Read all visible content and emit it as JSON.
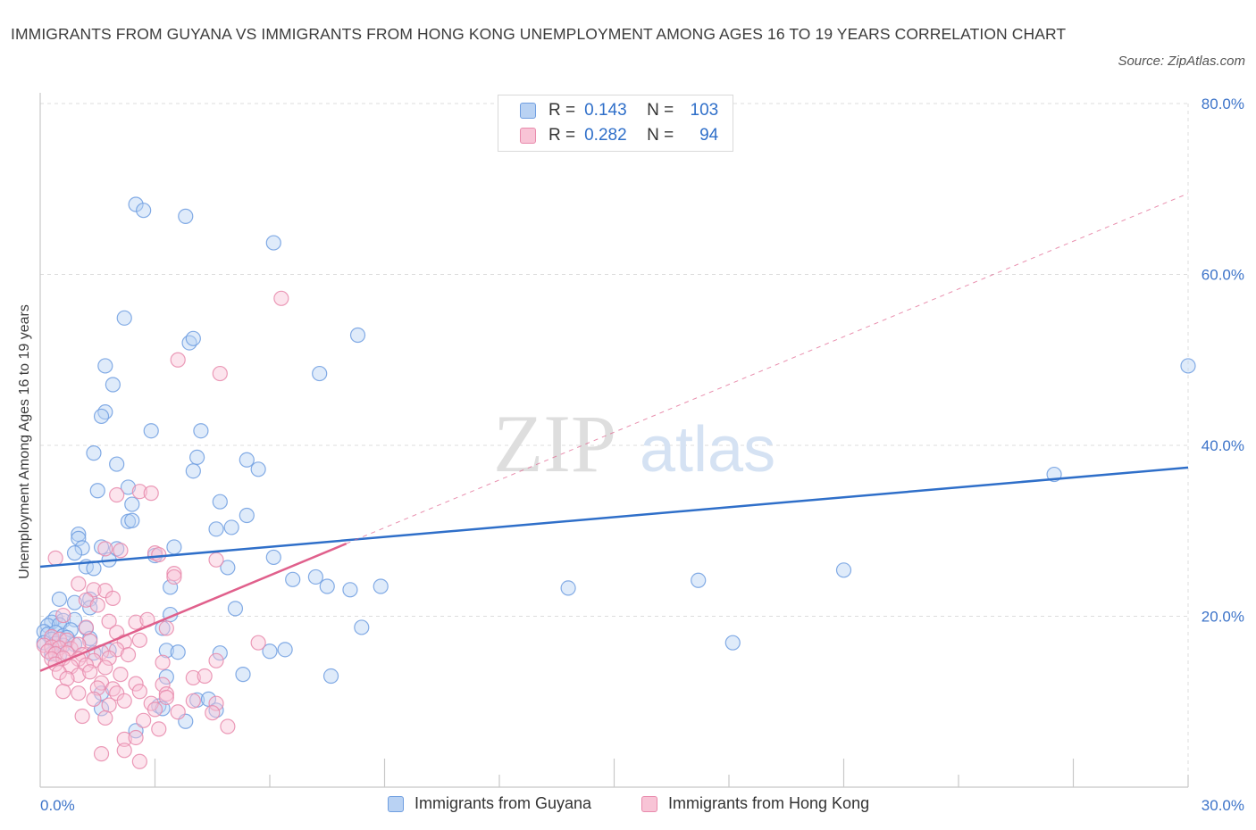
{
  "title": "IMMIGRANTS FROM GUYANA VS IMMIGRANTS FROM HONG KONG UNEMPLOYMENT AMONG AGES 16 TO 19 YEARS CORRELATION CHART",
  "source": "Source: ZipAtlas.com",
  "watermark": {
    "zip": "ZIP",
    "atlas": "atlas"
  },
  "legend": {
    "series": [
      {
        "r_label": "R =",
        "r_value": "0.143",
        "n_label": "N =",
        "n_value": "103"
      },
      {
        "r_label": "R =",
        "r_value": "0.282",
        "n_label": "N =",
        "n_value": "94"
      }
    ]
  },
  "bottom_legend": [
    "Immigrants from Guyana",
    "Immigrants from Hong Kong"
  ],
  "colors": {
    "blue": "#6f9ee0",
    "blue_fill": "#b9d2f3",
    "blue_line": "#2f6fc9",
    "pink": "#e88aac",
    "pink_fill": "#f8c4d6",
    "pink_line": "#e0608c",
    "axis_text": "#3d74c9"
  },
  "chart_data": {
    "type": "scatter",
    "title": "IMMIGRANTS FROM GUYANA VS IMMIGRANTS FROM HONG KONG UNEMPLOYMENT AMONG AGES 16 TO 19 YEARS CORRELATION CHART",
    "xlabel": "",
    "ylabel": "Unemployment Among Ages 16 to 19 years",
    "xlim": [
      0,
      30
    ],
    "ylim": [
      0,
      80
    ],
    "x_tick_labels": [
      "0.0%",
      "30.0%"
    ],
    "y_ticks": [
      20,
      40,
      60,
      80
    ],
    "y_tick_labels": [
      "20.0%",
      "40.0%",
      "60.0%",
      "80.0%"
    ],
    "grid": true,
    "series": [
      {
        "name": "Immigrants from Guyana",
        "trend": {
          "x": [
            0,
            30
          ],
          "y": [
            25.8,
            37.4
          ]
        },
        "points": [
          [
            2.5,
            68.2
          ],
          [
            2.7,
            67.5
          ],
          [
            3.8,
            66.8
          ],
          [
            6.1,
            63.7
          ],
          [
            2.2,
            54.9
          ],
          [
            8.3,
            52.9
          ],
          [
            3.9,
            52.0
          ],
          [
            4.0,
            52.5
          ],
          [
            1.7,
            49.3
          ],
          [
            30.0,
            49.3
          ],
          [
            1.9,
            47.1
          ],
          [
            7.3,
            48.4
          ],
          [
            1.7,
            43.9
          ],
          [
            1.6,
            43.4
          ],
          [
            2.9,
            41.7
          ],
          [
            4.2,
            41.7
          ],
          [
            1.4,
            39.1
          ],
          [
            2.0,
            37.8
          ],
          [
            4.1,
            38.6
          ],
          [
            5.4,
            38.3
          ],
          [
            5.7,
            37.2
          ],
          [
            4.0,
            37.0
          ],
          [
            26.5,
            36.6
          ],
          [
            1.5,
            34.7
          ],
          [
            2.3,
            35.1
          ],
          [
            2.4,
            33.1
          ],
          [
            4.7,
            33.4
          ],
          [
            2.3,
            31.1
          ],
          [
            2.4,
            31.2
          ],
          [
            5.4,
            31.8
          ],
          [
            4.6,
            30.2
          ],
          [
            5.0,
            30.4
          ],
          [
            1.0,
            29.6
          ],
          [
            1.0,
            29.1
          ],
          [
            1.1,
            28.0
          ],
          [
            1.6,
            28.1
          ],
          [
            2.0,
            27.9
          ],
          [
            3.5,
            28.1
          ],
          [
            0.9,
            27.4
          ],
          [
            1.8,
            26.6
          ],
          [
            3.0,
            27.1
          ],
          [
            6.1,
            26.9
          ],
          [
            1.2,
            25.8
          ],
          [
            1.4,
            25.6
          ],
          [
            4.9,
            25.7
          ],
          [
            21.0,
            25.4
          ],
          [
            7.2,
            24.6
          ],
          [
            6.6,
            24.3
          ],
          [
            17.2,
            24.2
          ],
          [
            7.5,
            23.5
          ],
          [
            8.1,
            23.1
          ],
          [
            8.9,
            23.5
          ],
          [
            13.8,
            23.3
          ],
          [
            3.4,
            23.4
          ],
          [
            0.5,
            22.0
          ],
          [
            1.3,
            22.0
          ],
          [
            0.9,
            21.6
          ],
          [
            1.3,
            21.0
          ],
          [
            5.1,
            20.9
          ],
          [
            3.4,
            20.2
          ],
          [
            0.4,
            19.8
          ],
          [
            0.6,
            19.5
          ],
          [
            0.9,
            19.6
          ],
          [
            0.3,
            19.3
          ],
          [
            0.2,
            18.9
          ],
          [
            0.5,
            19.0
          ],
          [
            8.4,
            18.7
          ],
          [
            0.1,
            18.2
          ],
          [
            0.2,
            17.9
          ],
          [
            0.4,
            18.1
          ],
          [
            0.6,
            17.7
          ],
          [
            0.8,
            18.4
          ],
          [
            1.2,
            18.6
          ],
          [
            0.3,
            17.3
          ],
          [
            0.7,
            17.5
          ],
          [
            1.3,
            17.4
          ],
          [
            0.1,
            16.9
          ],
          [
            0.4,
            16.8
          ],
          [
            0.6,
            16.6
          ],
          [
            0.9,
            16.7
          ],
          [
            3.2,
            18.6
          ],
          [
            18.1,
            16.9
          ],
          [
            1.8,
            16.0
          ],
          [
            3.3,
            16.0
          ],
          [
            3.6,
            15.8
          ],
          [
            4.7,
            15.7
          ],
          [
            6.0,
            15.9
          ],
          [
            6.4,
            16.1
          ],
          [
            0.3,
            15.6
          ],
          [
            0.5,
            15.4
          ],
          [
            1.4,
            15.7
          ],
          [
            3.3,
            12.9
          ],
          [
            5.3,
            13.2
          ],
          [
            7.6,
            13.0
          ],
          [
            1.6,
            11.0
          ],
          [
            4.1,
            10.2
          ],
          [
            4.4,
            10.3
          ],
          [
            1.6,
            9.2
          ],
          [
            3.1,
            9.5
          ],
          [
            3.2,
            9.2
          ],
          [
            4.6,
            9.0
          ],
          [
            3.8,
            7.7
          ],
          [
            2.5,
            6.6
          ]
        ]
      },
      {
        "name": "Immigrants from Hong Kong",
        "trend": {
          "x": [
            0,
            8.0
          ],
          "y": [
            13.6,
            28.5
          ]
        },
        "points": [
          [
            6.3,
            57.2
          ],
          [
            3.6,
            50.0
          ],
          [
            4.7,
            48.4
          ],
          [
            2.0,
            34.2
          ],
          [
            2.6,
            34.6
          ],
          [
            2.9,
            34.4
          ],
          [
            1.7,
            27.9
          ],
          [
            2.1,
            27.7
          ],
          [
            3.0,
            27.4
          ],
          [
            3.1,
            27.2
          ],
          [
            0.4,
            26.8
          ],
          [
            4.6,
            26.6
          ],
          [
            3.5,
            25.0
          ],
          [
            3.5,
            24.6
          ],
          [
            1.0,
            23.8
          ],
          [
            1.4,
            23.1
          ],
          [
            1.7,
            23.0
          ],
          [
            1.9,
            22.1
          ],
          [
            1.2,
            21.9
          ],
          [
            1.5,
            21.3
          ],
          [
            0.6,
            20.1
          ],
          [
            1.8,
            19.4
          ],
          [
            2.5,
            19.3
          ],
          [
            2.8,
            19.6
          ],
          [
            3.3,
            18.6
          ],
          [
            1.2,
            18.7
          ],
          [
            2.0,
            18.1
          ],
          [
            0.3,
            17.6
          ],
          [
            0.5,
            17.3
          ],
          [
            0.7,
            17.2
          ],
          [
            1.3,
            17.1
          ],
          [
            0.1,
            16.6
          ],
          [
            0.3,
            16.4
          ],
          [
            0.5,
            16.3
          ],
          [
            0.8,
            16.2
          ],
          [
            1.0,
            16.7
          ],
          [
            2.2,
            17.0
          ],
          [
            2.6,
            17.2
          ],
          [
            5.7,
            16.9
          ],
          [
            0.2,
            15.9
          ],
          [
            0.4,
            15.6
          ],
          [
            0.7,
            15.7
          ],
          [
            1.1,
            15.5
          ],
          [
            1.6,
            15.8
          ],
          [
            2.0,
            16.1
          ],
          [
            2.3,
            15.5
          ],
          [
            0.3,
            15.0
          ],
          [
            0.6,
            15.1
          ],
          [
            1.0,
            15.0
          ],
          [
            1.4,
            14.8
          ],
          [
            1.8,
            15.1
          ],
          [
            0.4,
            14.4
          ],
          [
            0.8,
            14.1
          ],
          [
            1.2,
            14.3
          ],
          [
            1.7,
            14.0
          ],
          [
            3.2,
            14.6
          ],
          [
            4.6,
            14.8
          ],
          [
            0.5,
            13.4
          ],
          [
            1.0,
            13.1
          ],
          [
            1.3,
            13.5
          ],
          [
            2.1,
            13.2
          ],
          [
            0.7,
            12.7
          ],
          [
            1.6,
            12.2
          ],
          [
            1.9,
            11.5
          ],
          [
            2.5,
            12.1
          ],
          [
            3.2,
            12.0
          ],
          [
            4.0,
            12.8
          ],
          [
            4.3,
            13.0
          ],
          [
            1.5,
            11.6
          ],
          [
            2.0,
            11.0
          ],
          [
            2.6,
            11.2
          ],
          [
            3.3,
            10.9
          ],
          [
            1.0,
            11.0
          ],
          [
            1.4,
            10.3
          ],
          [
            1.8,
            9.6
          ],
          [
            2.2,
            10.1
          ],
          [
            2.9,
            9.8
          ],
          [
            3.3,
            10.5
          ],
          [
            4.0,
            10.1
          ],
          [
            4.6,
            9.8
          ],
          [
            3.0,
            9.1
          ],
          [
            3.6,
            8.8
          ],
          [
            4.5,
            8.7
          ],
          [
            1.1,
            8.3
          ],
          [
            1.7,
            8.1
          ],
          [
            2.7,
            7.8
          ],
          [
            3.1,
            6.8
          ],
          [
            4.9,
            7.1
          ],
          [
            2.2,
            5.6
          ],
          [
            2.5,
            5.8
          ],
          [
            2.2,
            4.3
          ],
          [
            2.6,
            3.0
          ],
          [
            1.6,
            3.9
          ],
          [
            0.6,
            11.2
          ]
        ]
      }
    ]
  }
}
